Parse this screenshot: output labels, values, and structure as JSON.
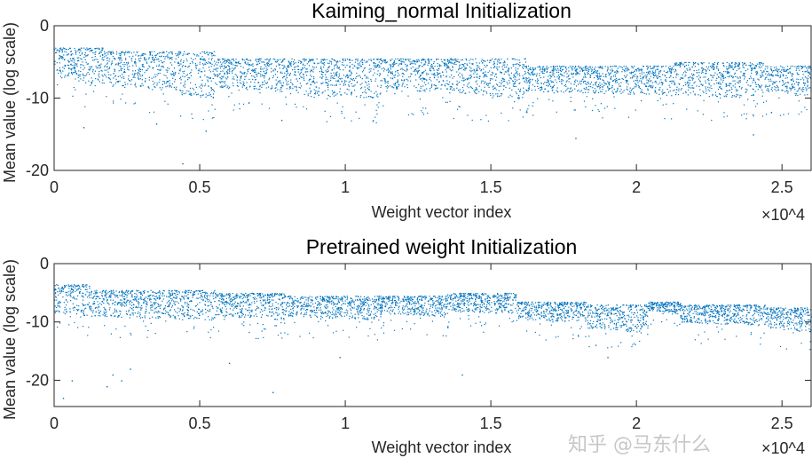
{
  "chart_data": [
    {
      "type": "scatter",
      "title": "Kaiming_normal Initialization",
      "xlabel": "Weight vector index",
      "ylabel": "Mean value (log scale)",
      "x_multiplier_label": "×10^4",
      "xlim": [
        0,
        26000
      ],
      "ylim": [
        -20,
        0
      ],
      "xticks": [
        0,
        5000,
        10000,
        15000,
        20000,
        25000
      ],
      "xtick_labels": [
        "0",
        "0.5",
        "1",
        "1.5",
        "2",
        "2.5"
      ],
      "yticks": [
        0,
        -10,
        -20
      ],
      "ytick_labels": [
        "0",
        "-10",
        "-20"
      ],
      "color": "#0072BD",
      "segments": [
        {
          "x": [
            0,
            700
          ],
          "y_range": [
            -7,
            -3
          ]
        },
        {
          "x": [
            700,
            1100
          ],
          "y_range": [
            -7.5,
            -3
          ]
        },
        {
          "x": [
            1100,
            1700
          ],
          "y_range": [
            -8,
            -3
          ]
        },
        {
          "x": [
            1700,
            3000
          ],
          "y_range": [
            -8,
            -3.5
          ]
        },
        {
          "x": [
            3000,
            3800
          ],
          "y_range": [
            -8.5,
            -3.5
          ]
        },
        {
          "x": [
            3800,
            4500
          ],
          "y_range": [
            -8.5,
            -3.5
          ]
        },
        {
          "x": [
            4500,
            5500
          ],
          "y_range": [
            -9.5,
            -3.5
          ]
        },
        {
          "x": [
            5500,
            8100
          ],
          "y_range": [
            -8.5,
            -4.5
          ]
        },
        {
          "x": [
            8100,
            9600
          ],
          "y_range": [
            -9.5,
            -4.5
          ]
        },
        {
          "x": [
            9600,
            11200
          ],
          "y_range": [
            -9.5,
            -4.5
          ]
        },
        {
          "x": [
            11200,
            12800
          ],
          "y_range": [
            -8.5,
            -4.5
          ]
        },
        {
          "x": [
            12800,
            14400
          ],
          "y_range": [
            -9,
            -4.5
          ]
        },
        {
          "x": [
            14400,
            16200
          ],
          "y_range": [
            -9.5,
            -4.5
          ]
        },
        {
          "x": [
            16200,
            21300
          ],
          "y_range": [
            -9,
            -5.5
          ]
        },
        {
          "x": [
            21300,
            24400
          ],
          "y_range": [
            -9.5,
            -5
          ]
        },
        {
          "x": [
            24400,
            26000
          ],
          "y_range": [
            -9,
            -5.5
          ]
        }
      ],
      "outliers": [
        [
          1000,
          -14
        ],
        [
          4400,
          -19
        ],
        [
          5200,
          -14.5
        ],
        [
          17900,
          -15.5
        ],
        [
          24000,
          -15
        ],
        [
          7800,
          -13
        ],
        [
          3500,
          -13.5
        ]
      ]
    },
    {
      "type": "scatter",
      "title": "Pretrained weight Initialization",
      "xlabel": "Weight vector index",
      "ylabel": "Mean value (log scale)",
      "x_multiplier_label": "×10^4",
      "xlim": [
        0,
        26000
      ],
      "ylim": [
        -24.5,
        0
      ],
      "xticks": [
        0,
        5000,
        10000,
        15000,
        20000,
        25000
      ],
      "xtick_labels": [
        "0",
        "0.5",
        "1",
        "1.5",
        "2",
        "2.5"
      ],
      "yticks": [
        0,
        -10,
        -20
      ],
      "ytick_labels": [
        "0",
        "-10",
        "-20"
      ],
      "color": "#0072BD",
      "segments": [
        {
          "x": [
            0,
            1200
          ],
          "y_range": [
            -8.5,
            -3.5
          ]
        },
        {
          "x": [
            1200,
            5500
          ],
          "y_range": [
            -9,
            -4.5
          ]
        },
        {
          "x": [
            5500,
            8000
          ],
          "y_range": [
            -9,
            -5
          ]
        },
        {
          "x": [
            8000,
            11200
          ],
          "y_range": [
            -9,
            -5.5
          ]
        },
        {
          "x": [
            11200,
            13500
          ],
          "y_range": [
            -8.5,
            -5.5
          ]
        },
        {
          "x": [
            13500,
            15900
          ],
          "y_range": [
            -8,
            -5
          ]
        },
        {
          "x": [
            15900,
            18300
          ],
          "y_range": [
            -9.5,
            -6.5
          ]
        },
        {
          "x": [
            18300,
            20400
          ],
          "y_range": [
            -11,
            -7
          ]
        },
        {
          "x": [
            20400,
            21500
          ],
          "y_range": [
            -8,
            -6.5
          ]
        },
        {
          "x": [
            21500,
            24400
          ],
          "y_range": [
            -10,
            -7
          ]
        },
        {
          "x": [
            24400,
            26000
          ],
          "y_range": [
            -11,
            -7.5
          ]
        }
      ],
      "outliers": [
        [
          300,
          -23
        ],
        [
          600,
          -20
        ],
        [
          1800,
          -21
        ],
        [
          2000,
          -19
        ],
        [
          2300,
          -20
        ],
        [
          2600,
          -18
        ],
        [
          6000,
          -17
        ],
        [
          7500,
          -22
        ],
        [
          14000,
          -19
        ],
        [
          9800,
          -16
        ],
        [
          19000,
          -16
        ]
      ]
    }
  ],
  "watermark": "知乎 @马东什么"
}
